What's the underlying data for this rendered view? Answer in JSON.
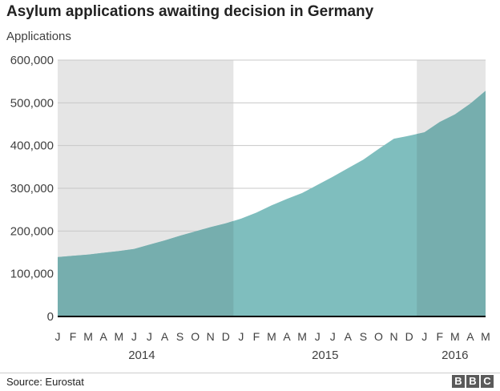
{
  "title": "Asylum applications awaiting decision in Germany",
  "source": "Source: Eurostat",
  "logo_text": "BBC",
  "colors": {
    "area": "#7fbebe",
    "area_shaded": "#76aeae",
    "band": "#e5e5e5",
    "grid": "#c8c8c8",
    "axis": "#000000"
  },
  "chart_data": {
    "type": "area",
    "title": "Asylum applications awaiting decision in Germany",
    "ylabel": "Applications",
    "xlabel": "",
    "ylim": [
      0,
      600000
    ],
    "yticks": [
      0,
      100000,
      200000,
      300000,
      400000,
      500000,
      600000
    ],
    "ytick_labels": [
      "0",
      "100,000",
      "200,000",
      "300,000",
      "400,000",
      "500,000",
      "600,000"
    ],
    "grid": true,
    "x": [
      "2014-01",
      "2014-02",
      "2014-03",
      "2014-04",
      "2014-05",
      "2014-06",
      "2014-07",
      "2014-08",
      "2014-09",
      "2014-10",
      "2014-11",
      "2014-12",
      "2015-01",
      "2015-02",
      "2015-03",
      "2015-04",
      "2015-05",
      "2015-06",
      "2015-07",
      "2015-08",
      "2015-09",
      "2015-10",
      "2015-11",
      "2015-12",
      "2016-01",
      "2016-02",
      "2016-03",
      "2016-04",
      "2016-05"
    ],
    "month_labels": [
      "J",
      "F",
      "M",
      "A",
      "M",
      "J",
      "J",
      "A",
      "S",
      "O",
      "N",
      "D",
      "J",
      "F",
      "M",
      "A",
      "M",
      "J",
      "J",
      "A",
      "S",
      "O",
      "N",
      "D",
      "J",
      "F",
      "M",
      "A",
      "M"
    ],
    "years": [
      {
        "label": "2014",
        "start": 0,
        "end": 11,
        "shaded": true
      },
      {
        "label": "2015",
        "start": 12,
        "end": 23,
        "shaded": false
      },
      {
        "label": "2016",
        "start": 24,
        "end": 28,
        "shaded": true
      }
    ],
    "values": [
      139000,
      142000,
      145000,
      149000,
      153000,
      158000,
      168000,
      178000,
      189000,
      199000,
      209000,
      218000,
      229000,
      243000,
      260000,
      275000,
      289000,
      308000,
      327000,
      347000,
      367000,
      392000,
      416000,
      423000,
      431000,
      455000,
      473000,
      498000,
      528000
    ]
  }
}
